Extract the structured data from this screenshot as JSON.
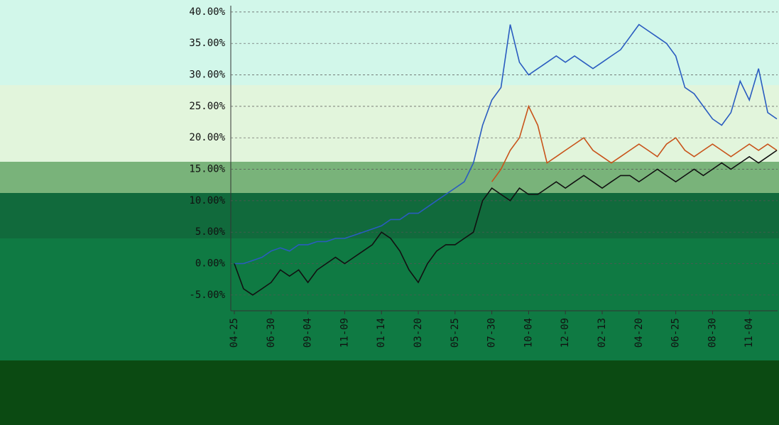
{
  "chart_data": {
    "type": "line",
    "categories": [
      "04-25",
      null,
      null,
      null,
      "06-30",
      null,
      null,
      null,
      "09-04",
      null,
      null,
      null,
      "11-09",
      null,
      null,
      null,
      "01-14",
      null,
      null,
      null,
      "03-20",
      null,
      null,
      null,
      "05-25",
      null,
      null,
      null,
      "07-30",
      null,
      null,
      null,
      "10-04",
      null,
      null,
      null,
      "12-09",
      null,
      null,
      null,
      "02-13",
      null,
      null,
      null,
      "04-20",
      null,
      null,
      null,
      "06-25",
      null,
      null,
      null,
      "08-30",
      null,
      null,
      null,
      "11-04",
      null,
      null,
      null
    ],
    "series": [
      {
        "color": "#2a5cc0",
        "values": [
          0,
          0,
          0.5,
          1,
          2,
          2.5,
          2,
          3,
          3,
          3.5,
          3.5,
          4,
          4,
          4.5,
          5,
          5.5,
          6,
          7,
          7,
          8,
          8,
          9,
          10,
          11,
          12,
          13,
          16,
          22,
          26,
          28,
          38,
          32,
          30,
          31,
          32,
          33,
          32,
          33,
          32,
          31,
          32,
          33,
          34,
          36,
          38,
          37,
          36,
          35,
          33,
          28,
          27,
          25,
          23,
          22,
          24,
          29,
          26,
          31,
          24,
          23
        ]
      },
      {
        "color": "#c8531a",
        "values": [
          null,
          null,
          null,
          null,
          null,
          null,
          null,
          null,
          null,
          null,
          null,
          null,
          null,
          null,
          null,
          null,
          null,
          null,
          null,
          null,
          null,
          null,
          null,
          null,
          null,
          null,
          null,
          null,
          13,
          15,
          18,
          20,
          25,
          22,
          16,
          17,
          18,
          19,
          20,
          18,
          17,
          16,
          17,
          18,
          19,
          18,
          17,
          19,
          20,
          18,
          17,
          18,
          19,
          18,
          17,
          18,
          19,
          18,
          19,
          18
        ]
      },
      {
        "color": "#111111",
        "values": [
          0,
          -4,
          -5,
          -4,
          -3,
          -1,
          -2,
          -1,
          -3,
          -1,
          0,
          1,
          0,
          1,
          2,
          3,
          5,
          4,
          2,
          -1,
          -3,
          0,
          2,
          3,
          3,
          4,
          5,
          10,
          12,
          11,
          10,
          12,
          11,
          11,
          12,
          13,
          12,
          13,
          14,
          13,
          12,
          13,
          14,
          14,
          13,
          14,
          15,
          14,
          13,
          14,
          15,
          14,
          15,
          16,
          15,
          16,
          17,
          16,
          17,
          18
        ]
      }
    ],
    "ylim": [
      -7.5,
      41
    ],
    "yticks": [
      {
        "value": -5,
        "label": "-5.00%"
      },
      {
        "value": 0,
        "label": "0.00%"
      },
      {
        "value": 5,
        "label": "5.00%"
      },
      {
        "value": 10,
        "label": "10.00%"
      },
      {
        "value": 15,
        "label": "15.00%"
      },
      {
        "value": 20,
        "label": "20.00%"
      },
      {
        "value": 25,
        "label": "25.00%"
      },
      {
        "value": 30,
        "label": "30.00%"
      },
      {
        "value": 35,
        "label": "35.00%"
      },
      {
        "value": 40,
        "label": "40.00%"
      }
    ],
    "grid": true
  }
}
